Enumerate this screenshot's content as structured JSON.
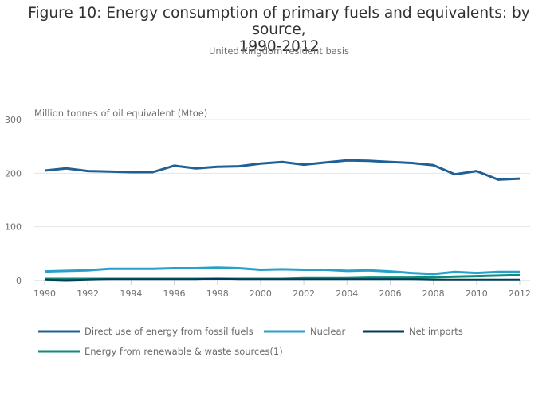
{
  "chart_data": {
    "type": "line",
    "title": "Figure 10: Energy consumption of primary fuels and equivalents: by source, 1990-2012",
    "title_lines": [
      "Figure 10: Energy consumption of primary fuels and equivalents: by source,",
      "1990-2012"
    ],
    "subtitle": "United Kingdom resident basis",
    "xlabel": "",
    "ylabel": "Million tonnes of oil equivalent (Mtoe)",
    "ylim": [
      0,
      300
    ],
    "xlim": [
      1990,
      2012
    ],
    "yticks": [
      0,
      100,
      200,
      300
    ],
    "xticks": [
      1990,
      1992,
      1994,
      1996,
      1998,
      2000,
      2002,
      2004,
      2006,
      2008,
      2010,
      2012
    ],
    "grid": true,
    "legend_position": "bottom",
    "x": [
      1990,
      1991,
      1992,
      1993,
      1994,
      1995,
      1996,
      1997,
      1998,
      1999,
      2000,
      2001,
      2002,
      2003,
      2004,
      2005,
      2006,
      2007,
      2008,
      2009,
      2010,
      2011,
      2012
    ],
    "series": [
      {
        "name": "Direct use of energy from fossil fuels",
        "color": "#206095",
        "values": [
          205,
          209,
          204,
          203,
          202,
          202,
          214,
          209,
          212,
          213,
          218,
          221,
          216,
          220,
          224,
          223,
          221,
          219,
          215,
          198,
          204,
          188,
          190
        ]
      },
      {
        "name": "Nuclear",
        "color": "#27a0cc",
        "values": [
          17,
          18,
          19,
          22,
          22,
          22,
          23,
          23,
          24,
          23,
          20,
          21,
          20,
          20,
          18,
          19,
          17,
          14,
          12,
          16,
          14,
          16,
          16
        ]
      },
      {
        "name": "Net imports",
        "color": "#003c57",
        "values": [
          1,
          0,
          1,
          2,
          2,
          2,
          2,
          2,
          3,
          2,
          2,
          2,
          2,
          2,
          2,
          2,
          2,
          2,
          1,
          1,
          1,
          1,
          1
        ]
      },
      {
        "name": "Energy from renewable & waste sources(1)",
        "color": "#118c7b",
        "values": [
          3,
          3,
          3,
          3,
          3,
          3,
          3,
          3,
          3,
          3,
          3,
          3,
          4,
          4,
          4,
          5,
          5,
          5,
          6,
          7,
          8,
          9,
          10
        ]
      }
    ]
  }
}
